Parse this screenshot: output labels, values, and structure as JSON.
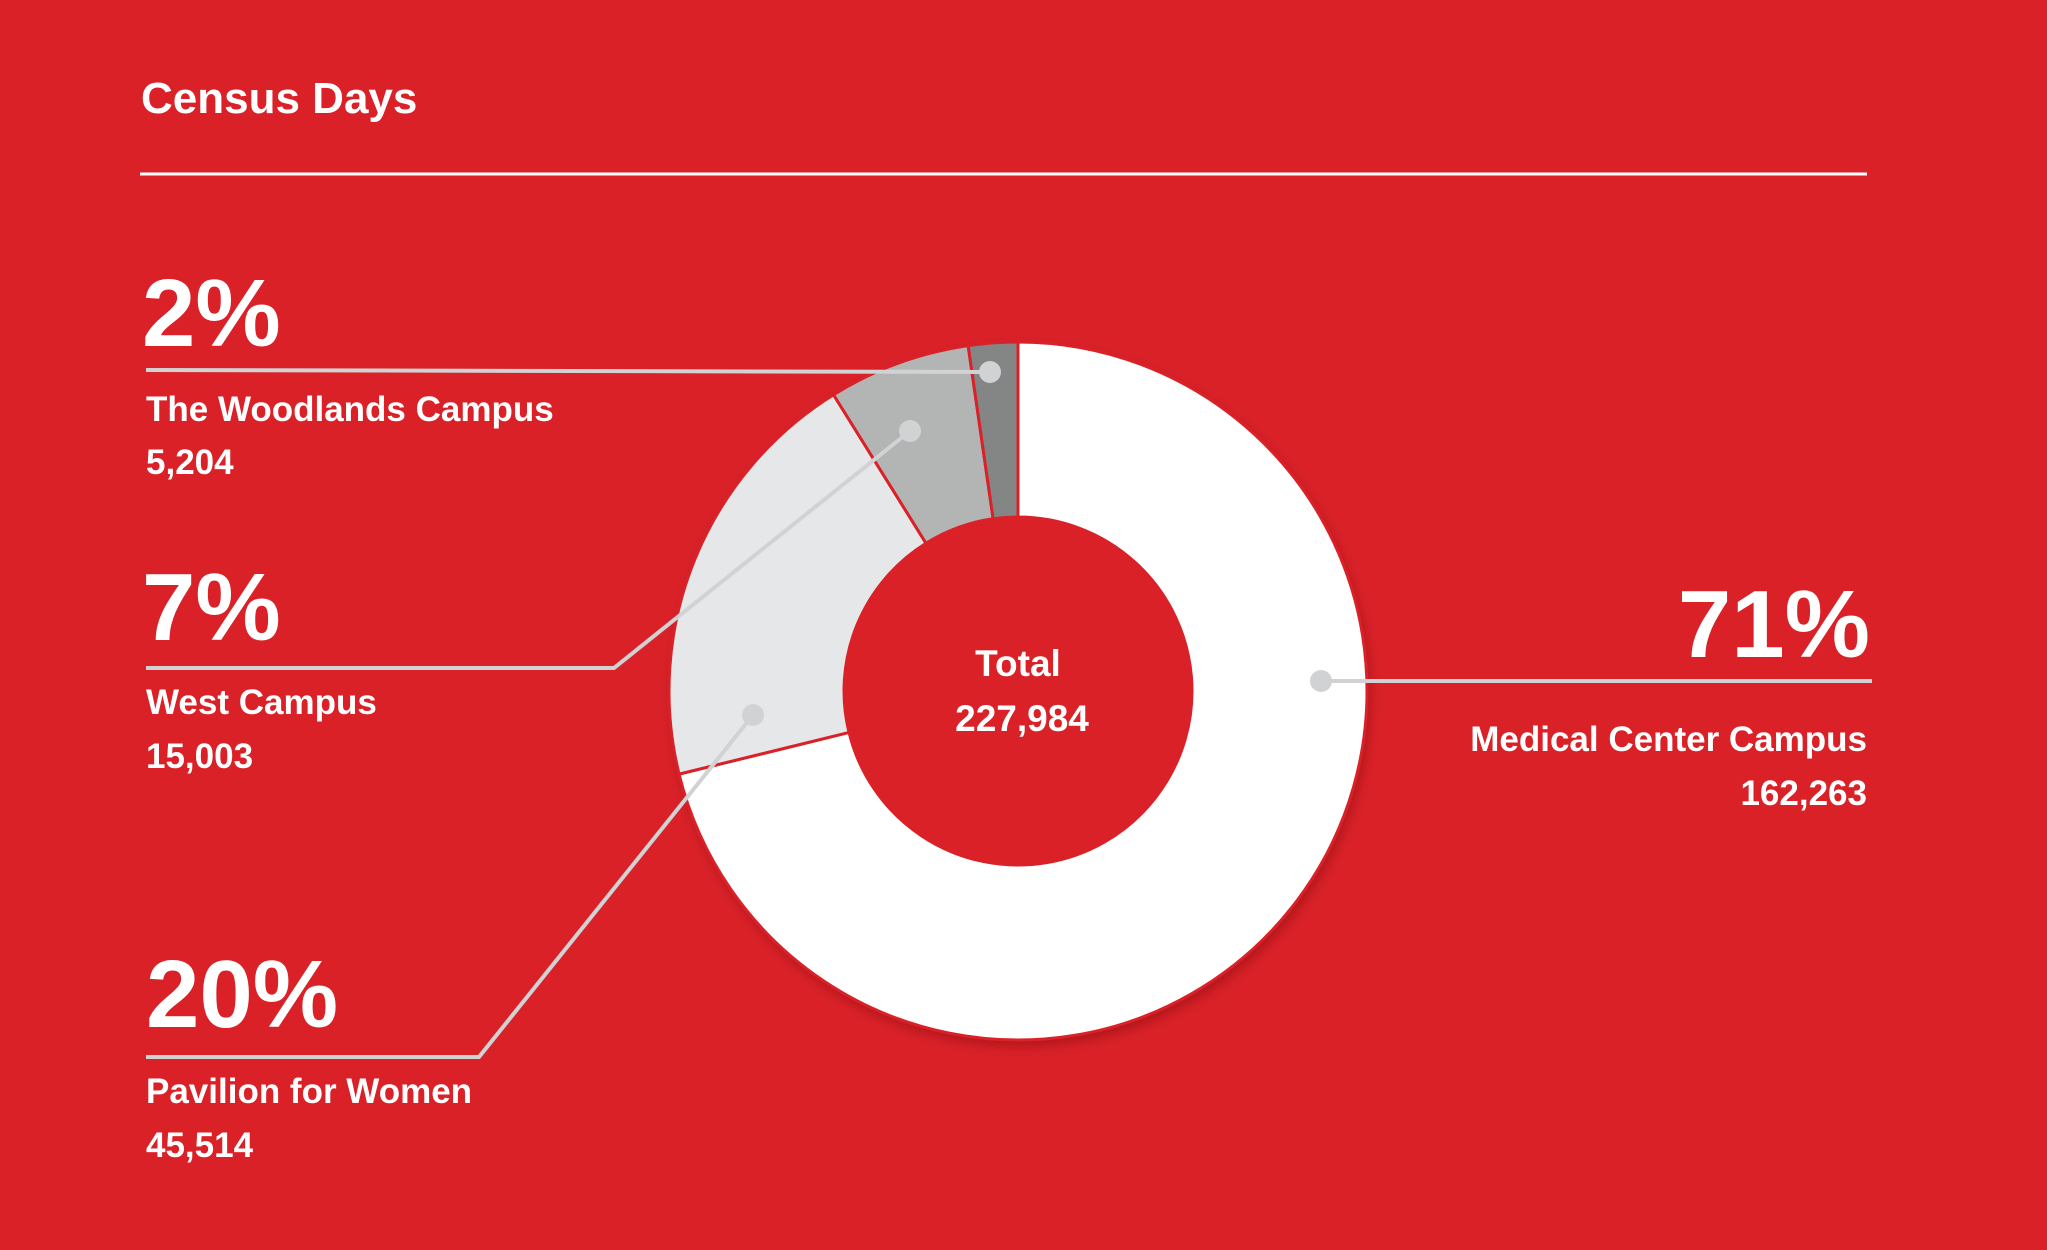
{
  "chart_data": {
    "type": "pie",
    "donut": true,
    "title": "Census Days",
    "total_label": "Total",
    "total_value": "227,984",
    "slices": [
      {
        "name": "Medical Center Campus",
        "value": 162263,
        "value_label": "162,263",
        "percent_label": "71%",
        "color": "#FFFFFF"
      },
      {
        "name": "Pavilion for Women",
        "value": 45514,
        "value_label": "45,514",
        "percent_label": "20%",
        "color": "#E6E7E8"
      },
      {
        "name": "West Campus",
        "value": 15003,
        "value_label": "15,003",
        "percent_label": "7%",
        "color": "#B3B4B4"
      },
      {
        "name": "The Woodlands Campus",
        "value": 5204,
        "value_label": "5,204",
        "percent_label": "2%",
        "color": "#848585"
      }
    ],
    "start": "12 o'clock",
    "direction": "clockwise"
  },
  "colors": {
    "background": "#DA2128",
    "leader": "#D1D2D4"
  }
}
